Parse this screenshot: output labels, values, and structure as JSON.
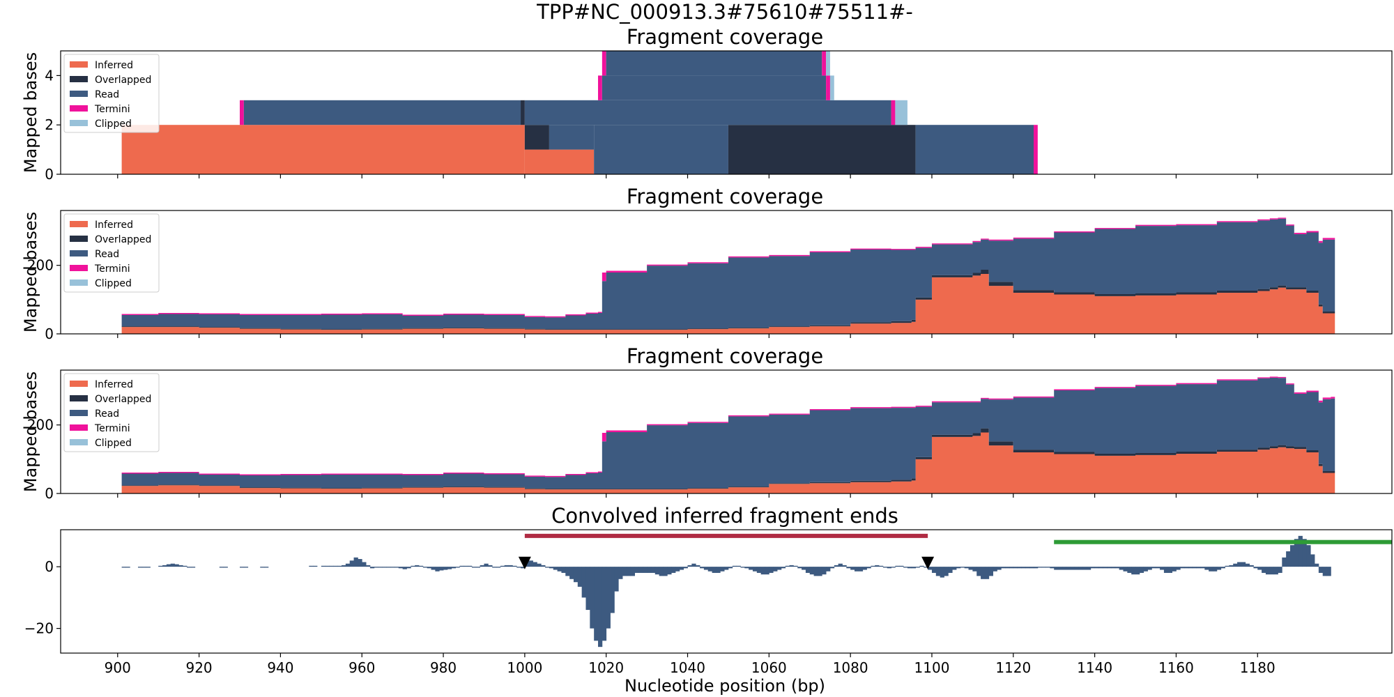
{
  "suptitle": "TPP#NC_000913.3#75610#75511#-",
  "colors": {
    "inferred": "#ee6a4e",
    "overlapped": "#263043",
    "read": "#3d5a80",
    "termini": "#f0129b",
    "clipped": "#98c1d9",
    "conv": "#3d5a80",
    "red_bar": "#b02b43",
    "green_bar": "#2e9b36",
    "marker": "#000000"
  },
  "legend": [
    "Inferred",
    "Overlapped",
    "Read",
    "Termini",
    "Clipped"
  ],
  "xaxis": {
    "label": "Nucleotide position (bp)",
    "ticks": [
      900,
      920,
      940,
      960,
      980,
      1000,
      1020,
      1040,
      1060,
      1080,
      1100,
      1120,
      1140,
      1160,
      1180
    ],
    "xlim": [
      886,
      1213
    ]
  },
  "chart_data": [
    {
      "type": "area",
      "title": "Fragment coverage",
      "ylabel": "Mapped bases",
      "ylim": [
        0,
        5
      ],
      "yticks": [
        0,
        2,
        4
      ],
      "blocks": [
        {
          "layer": "inferred",
          "x0": 901,
          "x1": 1000,
          "y0": 0,
          "y1": 2
        },
        {
          "layer": "inferred",
          "x0": 1000,
          "x1": 1017,
          "y0": 0,
          "y1": 1
        },
        {
          "layer": "overlapped",
          "x0": 1000,
          "x1": 1006,
          "y0": 1,
          "y1": 2
        },
        {
          "layer": "read",
          "x0": 1006,
          "x1": 1017,
          "y0": 1,
          "y1": 2
        },
        {
          "layer": "read",
          "x0": 1017,
          "x1": 1050,
          "y0": 0,
          "y1": 2
        },
        {
          "layer": "overlapped",
          "x0": 1050,
          "x1": 1096,
          "y0": 0,
          "y1": 2
        },
        {
          "layer": "read",
          "x0": 1096,
          "x1": 1125,
          "y0": 0,
          "y1": 2
        },
        {
          "layer": "termini",
          "x0": 1125,
          "x1": 1126,
          "y0": 0,
          "y1": 2
        },
        {
          "layer": "termini",
          "x0": 930,
          "x1": 931,
          "y0": 2,
          "y1": 3
        },
        {
          "layer": "read",
          "x0": 931,
          "x1": 999,
          "y0": 2,
          "y1": 3
        },
        {
          "layer": "overlapped",
          "x0": 999,
          "x1": 1000,
          "y0": 2,
          "y1": 3
        },
        {
          "layer": "read",
          "x0": 1000,
          "x1": 1090,
          "y0": 2,
          "y1": 3
        },
        {
          "layer": "termini",
          "x0": 1090,
          "x1": 1091,
          "y0": 2,
          "y1": 3
        },
        {
          "layer": "clipped",
          "x0": 1091,
          "x1": 1094,
          "y0": 2,
          "y1": 3
        },
        {
          "layer": "termini",
          "x0": 1018,
          "x1": 1019,
          "y0": 3,
          "y1": 4
        },
        {
          "layer": "read",
          "x0": 1019,
          "x1": 1074,
          "y0": 3,
          "y1": 4
        },
        {
          "layer": "termini",
          "x0": 1074,
          "x1": 1075,
          "y0": 3,
          "y1": 4
        },
        {
          "layer": "clipped",
          "x0": 1075,
          "x1": 1076,
          "y0": 3,
          "y1": 4
        },
        {
          "layer": "termini",
          "x0": 1019,
          "x1": 1020,
          "y0": 4,
          "y1": 5
        },
        {
          "layer": "read",
          "x0": 1020,
          "x1": 1073,
          "y0": 4,
          "y1": 5
        },
        {
          "layer": "termini",
          "x0": 1073,
          "x1": 1074,
          "y0": 4,
          "y1": 5
        },
        {
          "layer": "clipped",
          "x0": 1074,
          "x1": 1075,
          "y0": 4,
          "y1": 5
        }
      ]
    },
    {
      "type": "area",
      "title": "Fragment coverage",
      "ylabel": "Mapped bases",
      "ylim": [
        0,
        360
      ],
      "yticks": [
        0,
        200
      ],
      "x": [
        901,
        910,
        920,
        930,
        940,
        950,
        960,
        970,
        980,
        990,
        1000,
        1005,
        1010,
        1015,
        1018,
        1019,
        1020,
        1030,
        1040,
        1050,
        1060,
        1070,
        1080,
        1090,
        1095,
        1096,
        1100,
        1110,
        1112,
        1114,
        1120,
        1130,
        1140,
        1150,
        1160,
        1170,
        1180,
        1183,
        1185,
        1187,
        1189,
        1192,
        1195,
        1196,
        1198
      ],
      "inferred": [
        20,
        20,
        18,
        15,
        13,
        12,
        13,
        15,
        16,
        15,
        13,
        12,
        12,
        12,
        12,
        12,
        12,
        12,
        14,
        16,
        20,
        22,
        30,
        32,
        35,
        100,
        165,
        170,
        175,
        140,
        120,
        115,
        110,
        112,
        115,
        120,
        125,
        130,
        135,
        130,
        130,
        120,
        80,
        60,
        60
      ],
      "overlapped": [
        2,
        2,
        2,
        2,
        2,
        2,
        2,
        2,
        2,
        2,
        2,
        2,
        2,
        2,
        2,
        2,
        2,
        2,
        2,
        2,
        2,
        3,
        4,
        5,
        6,
        6,
        6,
        8,
        12,
        12,
        8,
        6,
        6,
        6,
        6,
        6,
        6,
        6,
        6,
        6,
        6,
        6,
        6,
        5,
        5
      ],
      "read": [
        33,
        36,
        37,
        38,
        40,
        42,
        42,
        36,
        38,
        38,
        34,
        34,
        40,
        45,
        47,
        140,
        165,
        185,
        190,
        205,
        205,
        213,
        212,
        208,
        204,
        145,
        90,
        90,
        88,
        120,
        150,
        175,
        190,
        197,
        196,
        200,
        200,
        198,
        195,
        180,
        155,
        170,
        180,
        210,
        210
      ],
      "termini": [
        3,
        3,
        3,
        3,
        3,
        3,
        3,
        3,
        3,
        3,
        3,
        3,
        3,
        3,
        3,
        25,
        5,
        3,
        3,
        3,
        3,
        3,
        3,
        3,
        3,
        3,
        3,
        3,
        3,
        3,
        3,
        3,
        3,
        3,
        3,
        3,
        3,
        3,
        3,
        3,
        4,
        4,
        5,
        5,
        5
      ],
      "clipped": [
        0,
        0,
        0,
        0,
        0,
        0,
        0,
        0,
        0,
        0,
        0,
        0,
        0,
        0,
        0,
        0,
        0,
        0,
        0,
        0,
        0,
        0,
        0,
        0,
        0,
        0,
        0,
        0,
        0,
        0,
        0,
        0,
        0,
        0,
        0,
        0,
        0,
        0,
        0,
        0,
        0,
        0,
        0,
        0,
        0
      ]
    },
    {
      "type": "area",
      "title": "Fragment coverage",
      "ylabel": "Mapped bases",
      "ylim": [
        0,
        360
      ],
      "yticks": [
        0,
        200
      ],
      "x": [
        901,
        910,
        920,
        930,
        940,
        950,
        960,
        970,
        980,
        990,
        1000,
        1005,
        1010,
        1015,
        1018,
        1019,
        1020,
        1030,
        1040,
        1050,
        1060,
        1070,
        1080,
        1090,
        1095,
        1096,
        1100,
        1110,
        1112,
        1114,
        1120,
        1130,
        1140,
        1150,
        1160,
        1170,
        1180,
        1183,
        1185,
        1187,
        1189,
        1192,
        1195,
        1196,
        1198
      ],
      "inferred": [
        22,
        24,
        22,
        16,
        15,
        14,
        15,
        17,
        18,
        17,
        13,
        12,
        12,
        12,
        12,
        12,
        12,
        12,
        14,
        18,
        28,
        30,
        33,
        35,
        38,
        100,
        165,
        168,
        178,
        140,
        120,
        115,
        110,
        112,
        116,
        122,
        128,
        132,
        135,
        132,
        130,
        120,
        80,
        60,
        60
      ],
      "overlapped": [
        2,
        2,
        2,
        2,
        2,
        2,
        2,
        2,
        2,
        2,
        2,
        2,
        2,
        2,
        2,
        2,
        2,
        2,
        2,
        2,
        2,
        3,
        4,
        5,
        6,
        6,
        6,
        8,
        12,
        12,
        8,
        6,
        6,
        6,
        6,
        6,
        6,
        6,
        6,
        6,
        6,
        6,
        6,
        5,
        5
      ],
      "read": [
        34,
        34,
        31,
        35,
        37,
        39,
        38,
        35,
        38,
        37,
        34,
        34,
        40,
        45,
        47,
        138,
        165,
        185,
        190,
        205,
        200,
        210,
        212,
        210,
        206,
        147,
        95,
        90,
        86,
        122,
        152,
        180,
        192,
        196,
        197,
        202,
        202,
        200,
        196,
        180,
        155,
        170,
        180,
        210,
        212
      ],
      "termini": [
        3,
        3,
        3,
        3,
        3,
        3,
        3,
        3,
        3,
        3,
        3,
        3,
        3,
        3,
        3,
        25,
        5,
        3,
        3,
        3,
        3,
        3,
        3,
        3,
        3,
        3,
        3,
        3,
        3,
        3,
        3,
        3,
        3,
        3,
        3,
        3,
        3,
        3,
        3,
        3,
        4,
        4,
        5,
        5,
        5
      ],
      "clipped": [
        0,
        0,
        0,
        0,
        0,
        0,
        0,
        0,
        0,
        0,
        0,
        0,
        0,
        0,
        0,
        0,
        0,
        0,
        0,
        0,
        0,
        0,
        0,
        0,
        0,
        0,
        0,
        0,
        0,
        0,
        0,
        0,
        0,
        0,
        0,
        0,
        0,
        0,
        0,
        0,
        0,
        0,
        0,
        0,
        0
      ]
    },
    {
      "type": "bar",
      "title": "Convolved inferred fragment ends",
      "ylim": [
        -28,
        12
      ],
      "yticks": [
        -20,
        0
      ],
      "x": [
        901,
        902,
        905,
        906,
        907,
        910,
        911,
        912,
        913,
        914,
        915,
        916,
        917,
        918,
        925,
        926,
        930,
        931,
        935,
        936,
        947,
        948,
        950,
        951,
        952,
        953,
        954,
        955,
        956,
        957,
        958,
        959,
        960,
        961,
        962,
        963,
        964,
        965,
        966,
        967,
        968,
        969,
        970,
        971,
        972,
        973,
        974,
        975,
        976,
        977,
        978,
        979,
        980,
        981,
        982,
        983,
        984,
        985,
        986,
        987,
        988,
        989,
        990,
        991,
        992,
        993,
        994,
        995,
        996,
        997,
        998,
        999,
        1000,
        1001,
        1002,
        1003,
        1004,
        1005,
        1006,
        1007,
        1008,
        1009,
        1010,
        1011,
        1012,
        1013,
        1014,
        1015,
        1016,
        1017,
        1018,
        1019,
        1020,
        1021,
        1022,
        1023,
        1024,
        1025,
        1026,
        1027,
        1028,
        1029,
        1030,
        1031,
        1032,
        1033,
        1034,
        1035,
        1036,
        1037,
        1038,
        1039,
        1040,
        1041,
        1042,
        1043,
        1044,
        1045,
        1046,
        1047,
        1048,
        1049,
        1050,
        1051,
        1052,
        1053,
        1054,
        1055,
        1056,
        1057,
        1058,
        1059,
        1060,
        1061,
        1062,
        1063,
        1064,
        1065,
        1066,
        1067,
        1068,
        1069,
        1070,
        1071,
        1072,
        1073,
        1074,
        1075,
        1076,
        1077,
        1078,
        1079,
        1080,
        1081,
        1082,
        1083,
        1084,
        1085,
        1086,
        1087,
        1088,
        1089,
        1090,
        1091,
        1092,
        1093,
        1094,
        1095,
        1096,
        1097,
        1098,
        1099,
        1100,
        1101,
        1102,
        1103,
        1104,
        1105,
        1106,
        1107,
        1108,
        1109,
        1110,
        1111,
        1112,
        1113,
        1114,
        1115,
        1116,
        1117,
        1118,
        1119,
        1120,
        1121,
        1122,
        1123,
        1124,
        1125,
        1126,
        1127,
        1128,
        1129,
        1130,
        1131,
        1132,
        1133,
        1134,
        1135,
        1136,
        1137,
        1138,
        1139,
        1140,
        1141,
        1142,
        1143,
        1144,
        1145,
        1146,
        1147,
        1148,
        1149,
        1150,
        1151,
        1152,
        1153,
        1154,
        1155,
        1156,
        1157,
        1158,
        1159,
        1160,
        1161,
        1162,
        1163,
        1164,
        1165,
        1166,
        1167,
        1168,
        1169,
        1170,
        1171,
        1172,
        1173,
        1174,
        1175,
        1176,
        1177,
        1178,
        1179,
        1180,
        1181,
        1182,
        1183,
        1184,
        1185,
        1186,
        1187,
        1188,
        1189,
        1190,
        1191,
        1192,
        1193,
        1194,
        1195,
        1196,
        1197
      ],
      "values": [
        -0.3,
        -0.3,
        -0.3,
        -0.3,
        -0.3,
        0.3,
        0.5,
        0.8,
        1.0,
        0.8,
        0.5,
        0.3,
        -0.3,
        -0.3,
        -0.3,
        -0.3,
        -0.3,
        -0.3,
        -0.3,
        -0.3,
        0.3,
        0.3,
        0.3,
        0.3,
        0.3,
        0.3,
        0.3,
        0.5,
        1.0,
        2.0,
        3.0,
        2.5,
        1.5,
        0.5,
        -0.5,
        -0.3,
        -0.3,
        -0.3,
        -0.3,
        -0.3,
        -0.3,
        -0.5,
        -0.8,
        -0.5,
        0.3,
        0.5,
        0.3,
        -0.3,
        -0.5,
        -1.0,
        -1.5,
        -1.2,
        -1.0,
        -0.8,
        -0.5,
        -0.3,
        0.3,
        0.3,
        0.3,
        -0.3,
        -0.3,
        0.5,
        1.0,
        0.5,
        -0.3,
        -0.3,
        0.3,
        0.5,
        0.5,
        0.3,
        -0.3,
        -0.5,
        2.0,
        2.0,
        1.5,
        1.0,
        0.5,
        -0.3,
        -0.5,
        -1.0,
        -1.5,
        -2.0,
        -3.0,
        -4.0,
        -5.0,
        -6.5,
        -10,
        -14,
        -20,
        -24,
        -26,
        -24,
        -20,
        -15,
        -8,
        -4,
        -3,
        -3,
        -3,
        -2,
        -2,
        -2,
        -2,
        -2,
        -2.5,
        -3,
        -3,
        -2.5,
        -2,
        -1.5,
        -1,
        -0.5,
        0.5,
        1,
        0.5,
        -0.5,
        -1,
        -1.5,
        -2,
        -2,
        -1.5,
        -1,
        -0.5,
        0.3,
        0.3,
        -0.3,
        -0.5,
        -1.0,
        -1.5,
        -2.0,
        -2.5,
        -2.5,
        -2.0,
        -1.5,
        -1.0,
        -0.5,
        0.3,
        0.5,
        0.3,
        -0.5,
        -1.0,
        -2.0,
        -2.5,
        -3.0,
        -3.0,
        -2.5,
        -1.5,
        -0.5,
        0.5,
        1.0,
        0.5,
        -0.5,
        -1.0,
        -1.5,
        -1.5,
        -1.0,
        -0.5,
        0.3,
        0.5,
        0.3,
        -0.3,
        -0.5,
        -0.3,
        0.3,
        0.3,
        -0.3,
        -0.5,
        -0.5,
        -0.3,
        0.3,
        -0.3,
        -1.0,
        -2.0,
        -3.0,
        -3.5,
        -3.0,
        -2.0,
        -1.0,
        -0.5,
        -0.3,
        -0.5,
        -1.0,
        -1.5,
        -3.0,
        -4.0,
        -4.0,
        -3.0,
        -1.5,
        -1.0,
        -0.5,
        -0.5,
        -0.5,
        -0.5,
        -0.5,
        -0.5,
        -0.5,
        -0.5,
        -0.5,
        -0.3,
        -0.3,
        -0.3,
        -0.5,
        -1.0,
        -1.0,
        -1.0,
        -1.0,
        -1.0,
        -1.0,
        -1.0,
        -1.0,
        -1.0,
        -0.5,
        -0.5,
        -0.5,
        -0.5,
        -0.5,
        -0.5,
        -0.5,
        -1.0,
        -1.5,
        -2.0,
        -2.5,
        -2.5,
        -2.0,
        -1.5,
        -1.0,
        -0.5,
        -0.5,
        -1.0,
        -2.0,
        -2.0,
        -1.5,
        -1.0,
        -0.5,
        -0.5,
        -0.5,
        -0.5,
        -0.5,
        -0.5,
        -1.0,
        -1.5,
        -1.5,
        -1.0,
        -0.5,
        0.3,
        0.5,
        1.0,
        1.5,
        1.5,
        1.0,
        0.5,
        -0.5,
        -1.0,
        -2.0,
        -2.5,
        -2.5,
        -2.5,
        -2.0,
        3,
        5,
        7,
        9,
        10,
        9,
        7,
        4,
        1,
        -2,
        -3,
        -3
      ],
      "intervals": [
        {
          "x0": 1000,
          "x1": 1099,
          "y": 10,
          "color": "red_bar"
        },
        {
          "x0": 1130,
          "x1": 1213,
          "y": 8,
          "color": "green_bar"
        }
      ],
      "markers": [
        {
          "x": 1000,
          "y": 1.2
        },
        {
          "x": 1099,
          "y": 1.2
        }
      ]
    }
  ]
}
